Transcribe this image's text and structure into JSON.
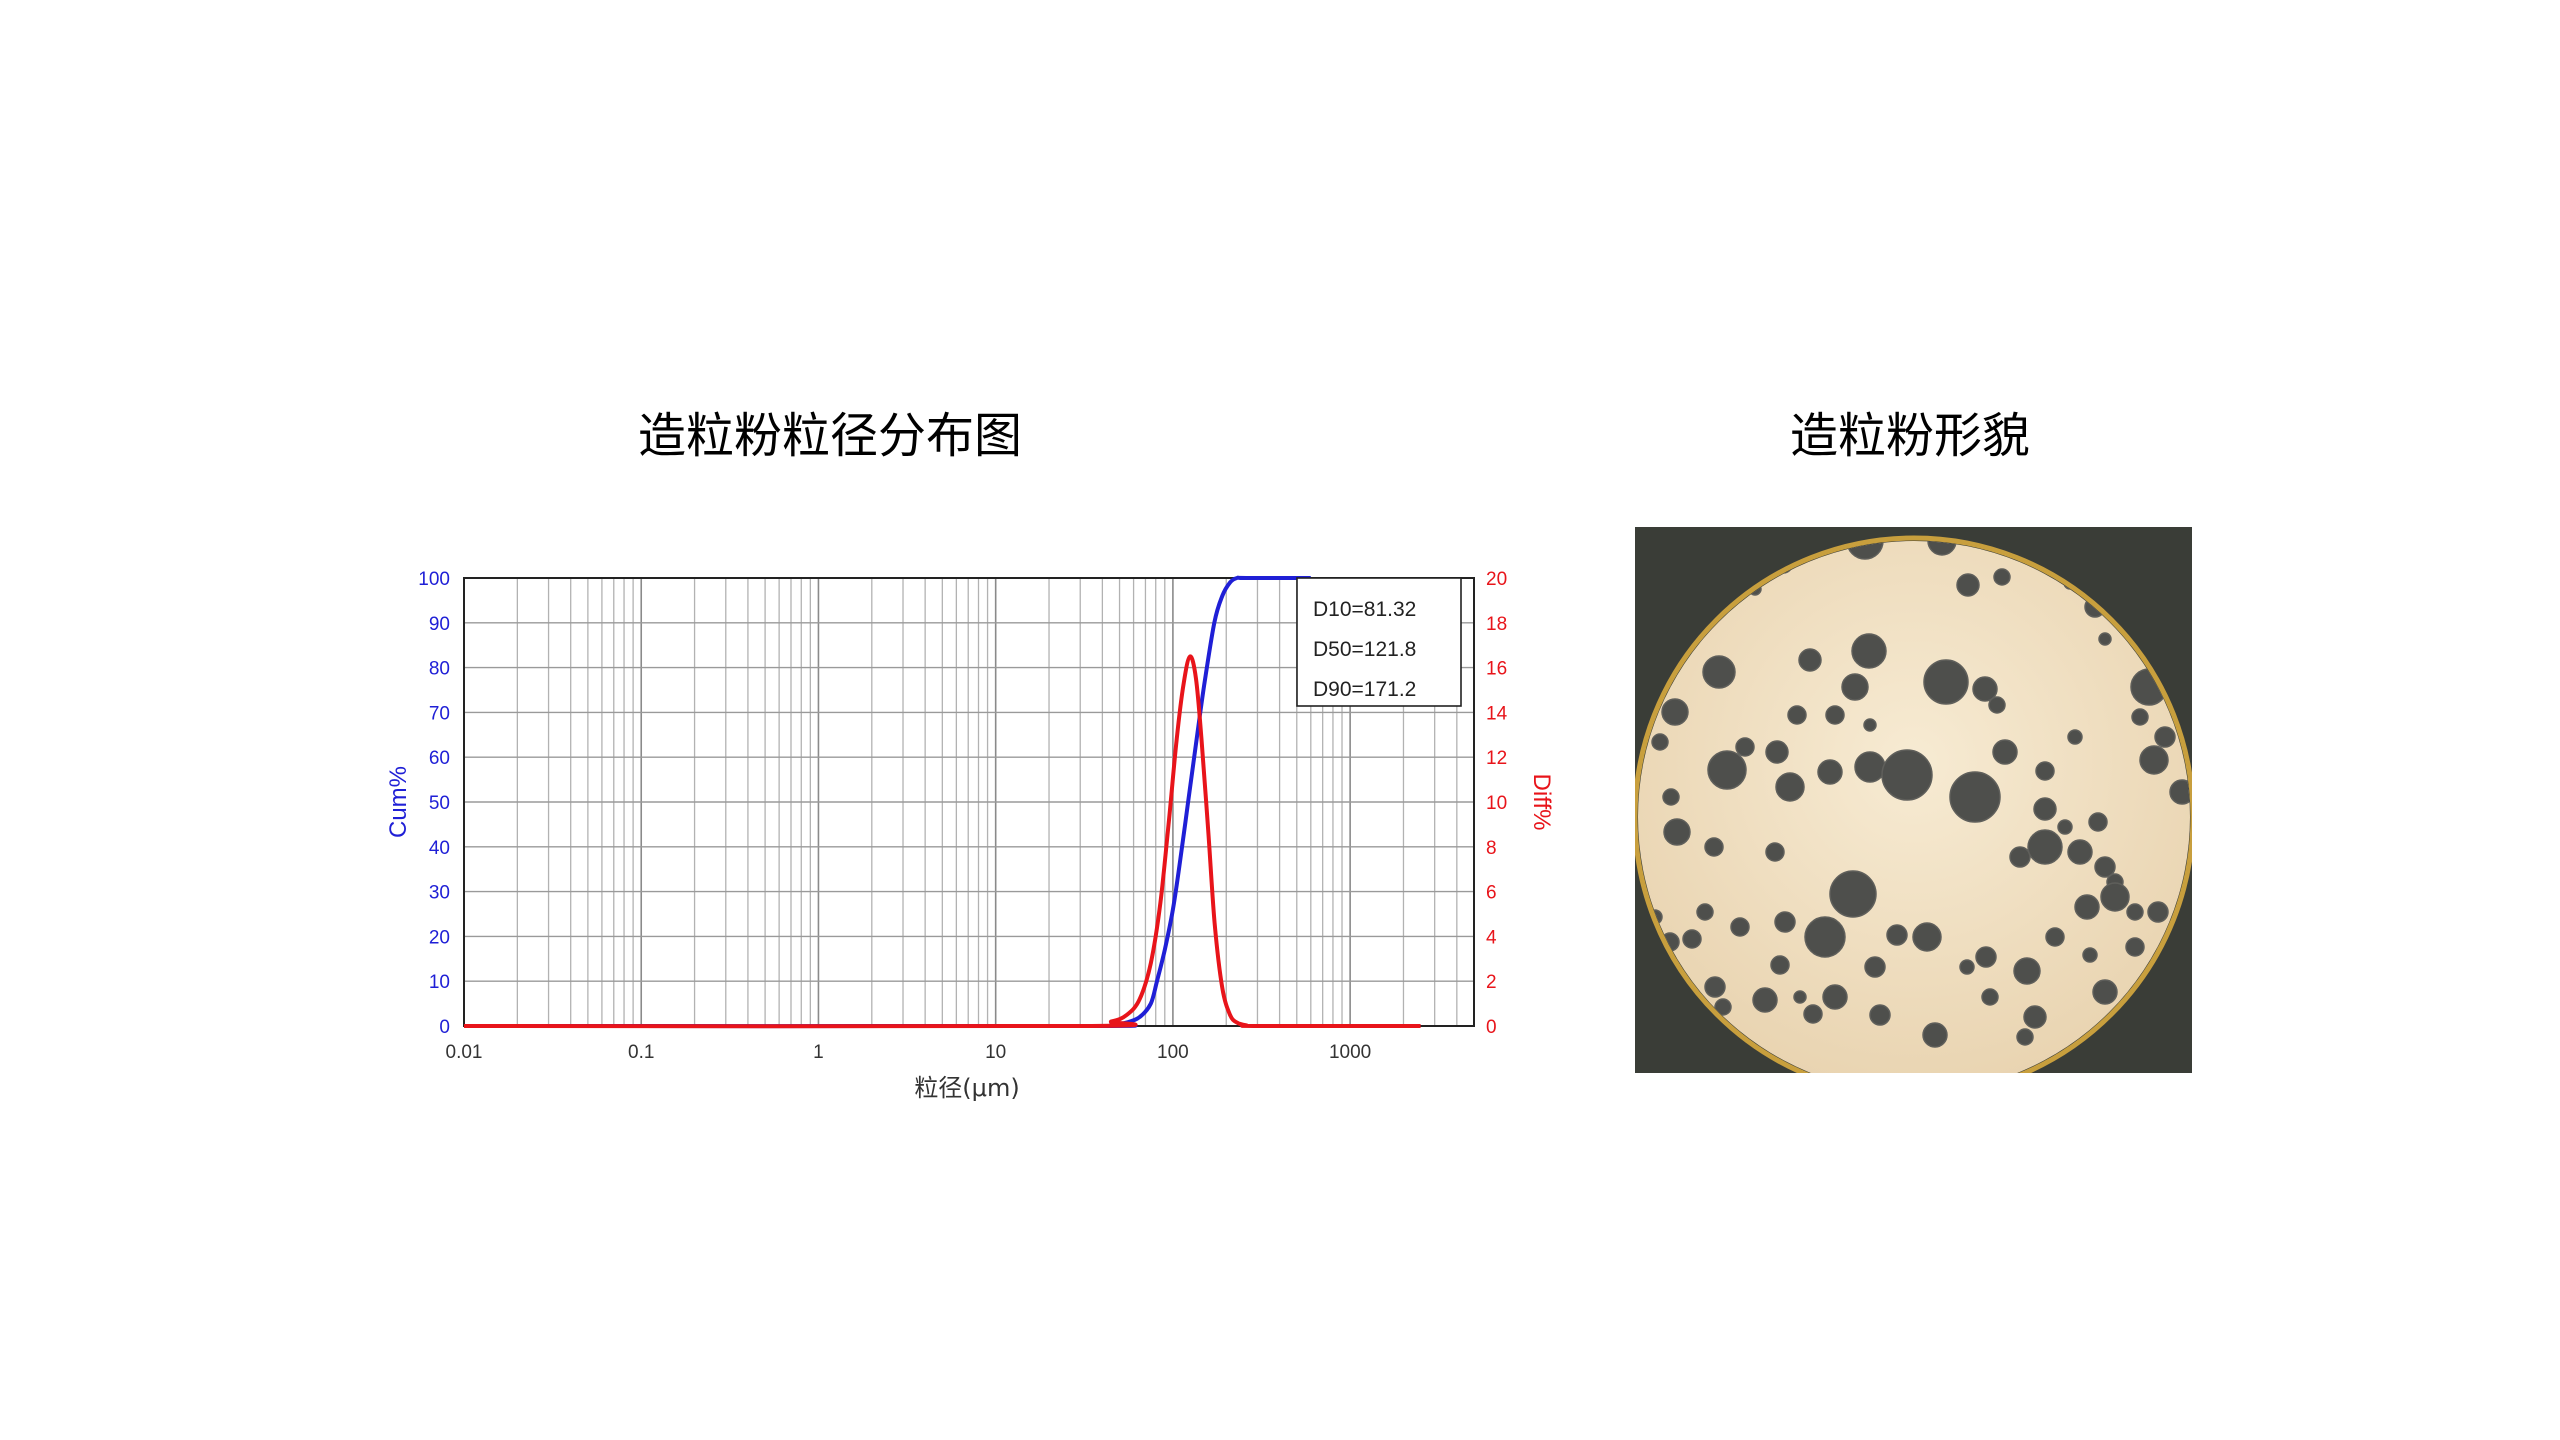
{
  "titles": {
    "chart": "造粒粉粒径分布图",
    "image": "造粒粉形貌"
  },
  "chart_data": {
    "type": "line",
    "xlabel": "粒径(μm)",
    "x_scale": "log",
    "xlim": [
      0.01,
      5000
    ],
    "x_tick_labels": [
      "0.01",
      "0.1",
      "1",
      "10",
      "100",
      "1000"
    ],
    "y_left": {
      "label": "Cum%",
      "lim": [
        0,
        100
      ],
      "color": "#1f1fd6",
      "ticks": [
        "0",
        "10",
        "20",
        "30",
        "40",
        "50",
        "60",
        "70",
        "80",
        "90",
        "100"
      ]
    },
    "y_right": {
      "label": "Diff%",
      "lim": [
        0,
        20
      ],
      "color": "#e8141a",
      "ticks": [
        "0",
        "2",
        "4",
        "6",
        "8",
        "10",
        "12",
        "14",
        "16",
        "18",
        "20"
      ]
    },
    "grid": true,
    "annotations": [
      "D10=81.32",
      "D50=121.8",
      "D90=171.2"
    ],
    "series": [
      {
        "axis": "left",
        "color": "#1f1fd6",
        "x": [
          0.01,
          30,
          45,
          55,
          65,
          75,
          81.32,
          90,
          100,
          110,
          121.8,
          135,
          150,
          171.2,
          190,
          210,
          230,
          260,
          600
        ],
        "y": [
          0,
          0,
          0.3,
          0.8,
          2,
          5,
          10,
          17,
          26,
          37,
          50,
          63,
          76,
          90,
          96,
          99,
          100,
          100,
          100
        ]
      },
      {
        "axis": "right",
        "color": "#e8141a",
        "x": [
          0.01,
          30,
          45,
          55,
          65,
          75,
          85,
          95,
          105,
          115,
          125,
          135,
          145,
          158,
          172,
          190,
          210,
          230,
          260,
          300,
          2500
        ],
        "y": [
          0,
          0,
          0.2,
          0.5,
          1.2,
          2.8,
          5.5,
          9.2,
          12.8,
          15.3,
          16.5,
          15.5,
          12.8,
          8.8,
          4.6,
          1.7,
          0.5,
          0.15,
          0.03,
          0,
          0
        ]
      }
    ]
  },
  "micro": {
    "field_color": "#f2e2c6",
    "particle_color": "#4e4f4c",
    "background_color": "#3a3d37"
  }
}
